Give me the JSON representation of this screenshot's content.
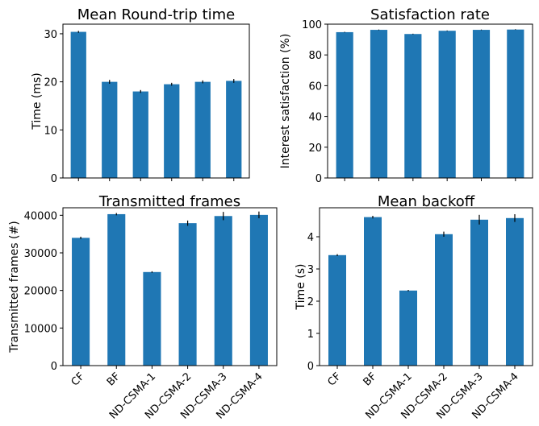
{
  "chart_data": [
    {
      "type": "bar",
      "title": "Mean Round-trip time",
      "ylabel": "Time (ms)",
      "categories": [
        "CF",
        "BF",
        "ND-CSMA-1",
        "ND-CSMA-2",
        "ND-CSMA-3",
        "ND-CSMA-4"
      ],
      "values": [
        30.4,
        20.0,
        18.0,
        19.5,
        20.0,
        20.2
      ],
      "errors": [
        0.2,
        0.4,
        0.3,
        0.3,
        0.3,
        0.4
      ],
      "ylim": [
        0,
        32
      ],
      "yticks": [
        0,
        10,
        20,
        30
      ],
      "color": "#1f77b4"
    },
    {
      "type": "bar",
      "title": "Satisfaction rate",
      "ylabel": "Interest satisfaction (%)",
      "categories": [
        "CF",
        "BF",
        "ND-CSMA-1",
        "ND-CSMA-2",
        "ND-CSMA-3",
        "ND-CSMA-4"
      ],
      "values": [
        94.8,
        96.3,
        93.6,
        95.7,
        96.3,
        96.5
      ],
      "errors": [
        0.2,
        0.2,
        0.2,
        0.2,
        0.2,
        0.2
      ],
      "ylim": [
        0,
        100
      ],
      "yticks": [
        0,
        20,
        40,
        60,
        80,
        100
      ],
      "color": "#1f77b4"
    },
    {
      "type": "bar",
      "title": "Transmitted frames",
      "ylabel": "Transmitted frames (#)",
      "categories": [
        "CF",
        "BF",
        "ND-CSMA-1",
        "ND-CSMA-2",
        "ND-CSMA-3",
        "ND-CSMA-4"
      ],
      "values": [
        34000,
        40300,
        24900,
        37900,
        39800,
        40100
      ],
      "errors": [
        300,
        300,
        200,
        700,
        1100,
        900
      ],
      "ylim": [
        0,
        42000
      ],
      "yticks": [
        0,
        10000,
        20000,
        30000,
        40000
      ],
      "color": "#1f77b4"
    },
    {
      "type": "bar",
      "title": "Mean backoff",
      "ylabel": "Time (s)",
      "categories": [
        "CF",
        "BF",
        "ND-CSMA-1",
        "ND-CSMA-2",
        "ND-CSMA-3",
        "ND-CSMA-4"
      ],
      "values": [
        3.43,
        4.61,
        2.33,
        4.08,
        4.53,
        4.58
      ],
      "errors": [
        0.03,
        0.04,
        0.02,
        0.08,
        0.15,
        0.12
      ],
      "ylim": [
        0,
        4.9
      ],
      "yticks": [
        0,
        1,
        2,
        3,
        4
      ],
      "color": "#1f77b4"
    }
  ]
}
